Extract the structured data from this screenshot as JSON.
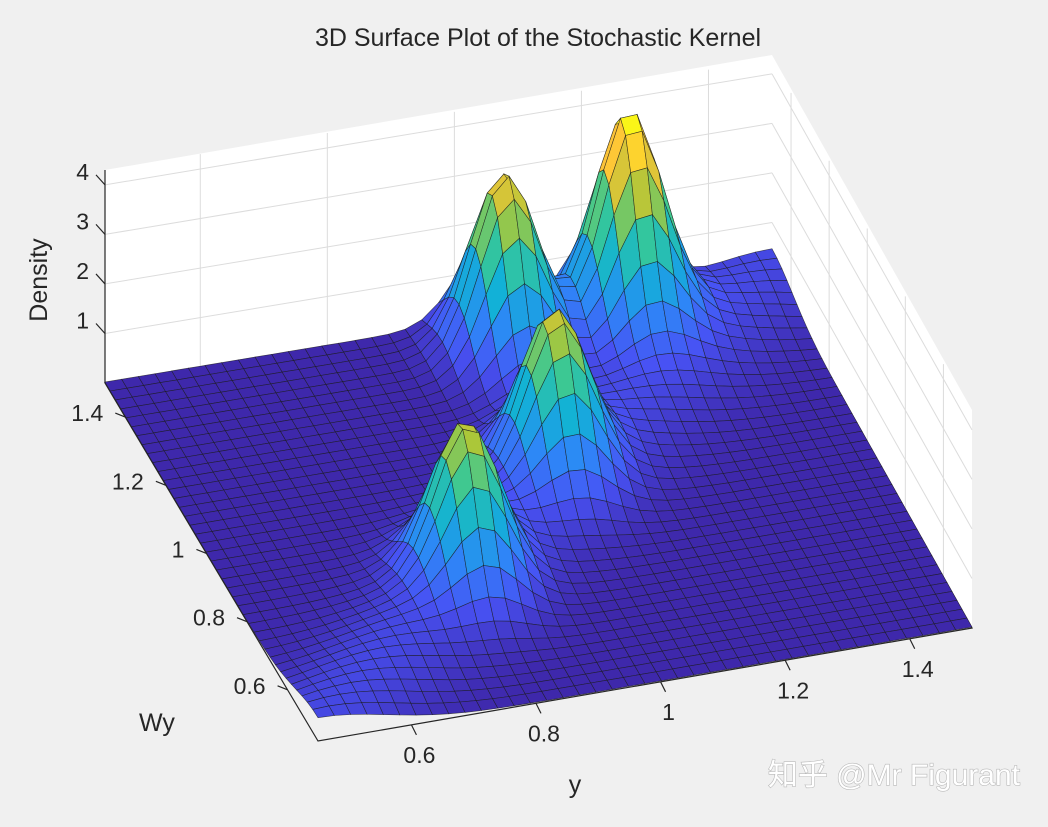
{
  "chart_data": {
    "type": "surface",
    "title": "3D Surface Plot of the Stochastic Kernel",
    "xlabel": "y",
    "ylabel": "Wy",
    "zlabel": "Density",
    "x_ticks": [
      "0.6",
      "0.8",
      "1",
      "1.2",
      "1.4"
    ],
    "y_ticks": [
      "0.6",
      "0.8",
      "1",
      "1.2",
      "1.4"
    ],
    "z_ticks": [
      "1",
      "2",
      "3",
      "4"
    ],
    "xlim": [
      0.45,
      1.5
    ],
    "ylim": [
      0.45,
      1.5
    ],
    "zlim": [
      0,
      4.3
    ],
    "grid": true,
    "colormap": "parula",
    "grid_points": 41,
    "peaks": [
      {
        "y": 0.8,
        "wy": 0.8,
        "density": 2.8
      },
      {
        "y": 1.02,
        "wy": 1.05,
        "density": 2.9
      },
      {
        "y": 1.05,
        "wy": 1.4,
        "density": 3.6
      },
      {
        "y": 1.25,
        "wy": 1.42,
        "density": 4.2
      }
    ],
    "ridge": {
      "direction": "along y = Wy",
      "width": 0.11,
      "density": 0.45
    }
  },
  "watermark": "知乎 @Mr Figurant"
}
